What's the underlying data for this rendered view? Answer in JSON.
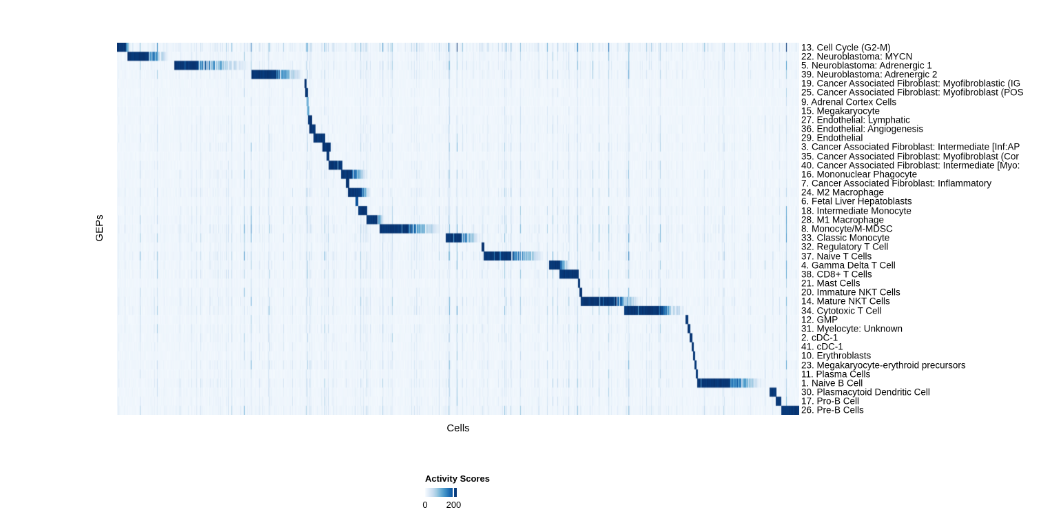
{
  "chart_data": {
    "type": "heatmap",
    "xlabel": "Cells",
    "ylabel": "GEPs",
    "legend": {
      "title": "Activity Scores",
      "min_label": "0",
      "max_label": "200",
      "vmin": 0,
      "vmax": 222,
      "tick_value": 200
    },
    "colormap": [
      "#F7FBFF",
      "#DEEBF7",
      "#C6DBEF",
      "#9ECAE1",
      "#6BAED6",
      "#4292C6",
      "#2171B5",
      "#08519C",
      "#08306B"
    ],
    "rows": [
      {
        "label": "13. Cell Cycle (G2-M)",
        "block": [
          0.0,
          0.013,
          0.02
        ],
        "peak": 1.0,
        "scatter": 0.95
      },
      {
        "label": "22. Neuroblastoma: MYCN",
        "block": [
          0.015,
          0.046,
          0.077
        ],
        "peak": 1.0,
        "scatter": 0.45
      },
      {
        "label": "5. Neuroblastoma: Adrenergic 1",
        "block": [
          0.084,
          0.118,
          0.197
        ],
        "peak": 1.0,
        "scatter": 0.55
      },
      {
        "label": "39. Neuroblastoma: Adrenergic 2",
        "block": [
          0.197,
          0.233,
          0.274
        ],
        "peak": 1.0,
        "scatter": 0.5
      },
      {
        "label": "19. Cancer Associated Fibroblast: Myofibroblastic (IG",
        "block": [
          0.275,
          0.278,
          0.278
        ],
        "peak": 1.0,
        "scatter": 0.3
      },
      {
        "label": "25. Cancer Associated Fibroblast: Myofibroblast (POS",
        "block": [
          0.276,
          0.28,
          0.28
        ],
        "peak": 1.0,
        "scatter": 0.3
      },
      {
        "label": "9. Adrenal Cortex Cells",
        "block": [
          0.278,
          0.281,
          0.281
        ],
        "peak": 0.5,
        "scatter": 0.25
      },
      {
        "label": "15. Megakaryocyte",
        "block": [
          0.279,
          0.282,
          0.282
        ],
        "peak": 0.55,
        "scatter": 0.3
      },
      {
        "label": "27. Endothelial: Lymphatic",
        "block": [
          0.28,
          0.286,
          0.286
        ],
        "peak": 1.0,
        "scatter": 0.35
      },
      {
        "label": "36. Endothelial: Angiogenesis",
        "block": [
          0.282,
          0.291,
          0.291
        ],
        "peak": 1.0,
        "scatter": 0.4
      },
      {
        "label": "29. Endothelial",
        "block": [
          0.288,
          0.305,
          0.305
        ],
        "peak": 1.0,
        "scatter": 0.4
      },
      {
        "label": "3. Cancer Associated Fibroblast: Intermediate [Inf:AP",
        "block": [
          0.301,
          0.313,
          0.313
        ],
        "peak": 1.0,
        "scatter": 0.45
      },
      {
        "label": "35. Cancer Associated Fibroblast: Myofibroblast (Cor",
        "block": [
          0.307,
          0.311,
          0.311
        ],
        "peak": 1.0,
        "scatter": 0.3
      },
      {
        "label": "40. Cancer Associated Fibroblast: Intermediate [Myo:",
        "block": [
          0.31,
          0.33,
          0.33
        ],
        "peak": 1.0,
        "scatter": 0.4
      },
      {
        "label": "16. Mononuclear Phagocyte",
        "block": [
          0.328,
          0.344,
          0.369
        ],
        "peak": 1.0,
        "scatter": 0.45
      },
      {
        "label": "7. Cancer Associated Fibroblast: Inflammatory",
        "block": [
          0.335,
          0.34,
          0.34
        ],
        "peak": 1.0,
        "scatter": 0.35
      },
      {
        "label": "24. M2 Macrophage",
        "block": [
          0.338,
          0.357,
          0.372
        ],
        "peak": 1.0,
        "scatter": 0.5
      },
      {
        "label": "6. Fetal Liver Hepatoblasts",
        "block": [
          0.35,
          0.354,
          0.354
        ],
        "peak": 0.9,
        "scatter": 0.3
      },
      {
        "label": "18. Intermediate Monocyte",
        "block": [
          0.354,
          0.367,
          0.367
        ],
        "peak": 1.0,
        "scatter": 0.5
      },
      {
        "label": "28. M1 Macrophage",
        "block": [
          0.366,
          0.382,
          0.392
        ],
        "peak": 1.0,
        "scatter": 0.5
      },
      {
        "label": "8. Monocyte/M-MDSC",
        "block": [
          0.385,
          0.427,
          0.478
        ],
        "peak": 1.0,
        "scatter": 0.65
      },
      {
        "label": "33. Classic Monocyte",
        "block": [
          0.482,
          0.505,
          0.532
        ],
        "peak": 1.0,
        "scatter": 0.6
      },
      {
        "label": "32. Regulatory T Cell",
        "block": [
          0.534,
          0.538,
          0.538
        ],
        "peak": 1.0,
        "scatter": 0.45
      },
      {
        "label": "37. Naive T Cells",
        "block": [
          0.537,
          0.578,
          0.629
        ],
        "peak": 1.0,
        "scatter": 0.65
      },
      {
        "label": "4. Gamma Delta T Cell",
        "block": [
          0.633,
          0.649,
          0.664
        ],
        "peak": 1.0,
        "scatter": 0.5
      },
      {
        "label": "38. CD8+ T Cells",
        "block": [
          0.648,
          0.677,
          0.677
        ],
        "peak": 1.0,
        "scatter": 0.55
      },
      {
        "label": "21. Mast Cells",
        "block": [
          0.676,
          0.679,
          0.679
        ],
        "peak": 1.0,
        "scatter": 0.3
      },
      {
        "label": "20. Immature NKT Cells",
        "block": [
          0.678,
          0.682,
          0.682
        ],
        "peak": 1.0,
        "scatter": 0.45
      },
      {
        "label": "14. Mature NKT Cells",
        "block": [
          0.68,
          0.732,
          0.768
        ],
        "peak": 1.0,
        "scatter": 0.6
      },
      {
        "label": "34. Cytotoxic T Cell",
        "block": [
          0.743,
          0.798,
          0.835
        ],
        "peak": 1.0,
        "scatter": 0.6
      },
      {
        "label": "12. GMP",
        "block": [
          0.833,
          0.837,
          0.837
        ],
        "peak": 1.0,
        "scatter": 0.35
      },
      {
        "label": "31. Myelocyte: Unknown",
        "block": [
          0.836,
          0.84,
          0.84
        ],
        "peak": 1.0,
        "scatter": 0.5
      },
      {
        "label": "2. cDC-1",
        "block": [
          0.839,
          0.843,
          0.843
        ],
        "peak": 1.0,
        "scatter": 0.45
      },
      {
        "label": "41. cDC-1",
        "block": [
          0.842,
          0.845,
          0.845
        ],
        "peak": 1.0,
        "scatter": 0.4
      },
      {
        "label": "10. Erythroblasts",
        "block": [
          0.844,
          0.847,
          0.847
        ],
        "peak": 1.0,
        "scatter": 0.35
      },
      {
        "label": "23. Megakaryocyte-erythroid precursors",
        "block": [
          0.846,
          0.849,
          0.849
        ],
        "peak": 1.0,
        "scatter": 0.5
      },
      {
        "label": "11. Plasma Cells",
        "block": [
          0.848,
          0.852,
          0.852
        ],
        "peak": 1.0,
        "scatter": 0.4
      },
      {
        "label": "1. Naive B Cell",
        "block": [
          0.851,
          0.899,
          0.951
        ],
        "peak": 1.0,
        "scatter": 0.55
      },
      {
        "label": "30. Plasmacytoid Dendritic Cell",
        "block": [
          0.957,
          0.967,
          0.967
        ],
        "peak": 1.0,
        "scatter": 0.4
      },
      {
        "label": "17. Pro-B Cell",
        "block": [
          0.966,
          0.974,
          0.974
        ],
        "peak": 1.0,
        "scatter": 0.45
      },
      {
        "label": "26. Pre-B Cells",
        "block": [
          0.974,
          1.0,
          1.0
        ],
        "peak": 1.0,
        "scatter": 0.6
      }
    ],
    "render_hints": {
      "seed": 1337,
      "base_level": 0.035,
      "grid": "off",
      "legend_position": "bottom-left"
    }
  }
}
